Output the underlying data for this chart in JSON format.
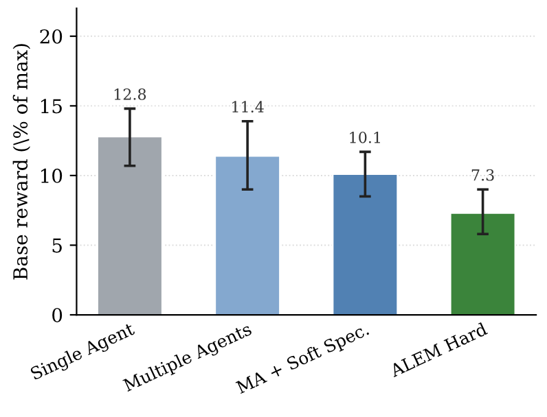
{
  "chart_data": {
    "type": "bar",
    "ylabel": "Base reward (\\% of max)",
    "categories": [
      "Single Agent",
      "Multiple Agents",
      "MA + Soft Spec.",
      "ALEM Hard"
    ],
    "values": [
      12.8,
      11.4,
      10.1,
      7.3
    ],
    "colors": [
      "#a0a6ad",
      "#84a8cf",
      "#5181b3",
      "#3b843b"
    ],
    "errors": [
      [
        10.7,
        14.8
      ],
      [
        9.0,
        13.9
      ],
      [
        8.5,
        11.7
      ],
      [
        5.8,
        9.0
      ]
    ],
    "data_labels": true,
    "ylim": [
      0,
      22
    ],
    "yticks": [
      0,
      5,
      10,
      15,
      20
    ],
    "grid": "y"
  }
}
